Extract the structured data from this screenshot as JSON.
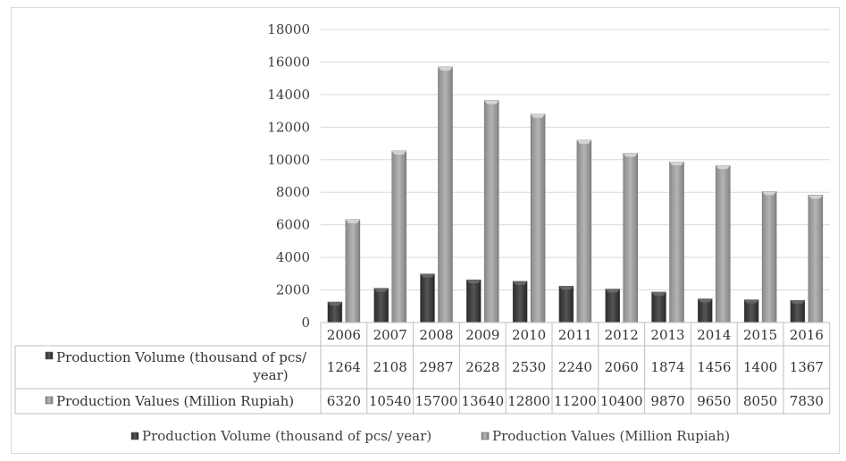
{
  "chart_data": {
    "type": "bar",
    "categories": [
      "2006",
      "2007",
      "2008",
      "2009",
      "2010",
      "2011",
      "2012",
      "2013",
      "2014",
      "2015",
      "2016"
    ],
    "series": [
      {
        "name": "Production Volume (thousand of pcs/ year)",
        "table_label_lines": [
          "Production Volume (thousand of pcs/",
          "year)"
        ],
        "values": [
          1264,
          2108,
          2987,
          2628,
          2530,
          2240,
          2060,
          1874,
          1456,
          1400,
          1367
        ],
        "color": "#3a3a3a"
      },
      {
        "name": "Production Values (Million Rupiah)",
        "table_label_lines": [
          "Production Values (Million Rupiah)"
        ],
        "values": [
          6320,
          10540,
          15700,
          13640,
          12800,
          11200,
          10400,
          9870,
          9650,
          8050,
          7830
        ],
        "color": "#9a9a9a"
      }
    ],
    "ylim": [
      0,
      18000
    ],
    "yticks": [
      0,
      2000,
      4000,
      6000,
      8000,
      10000,
      12000,
      14000,
      16000,
      18000
    ],
    "grid": true,
    "legend": "bottom",
    "data_table": true
  }
}
